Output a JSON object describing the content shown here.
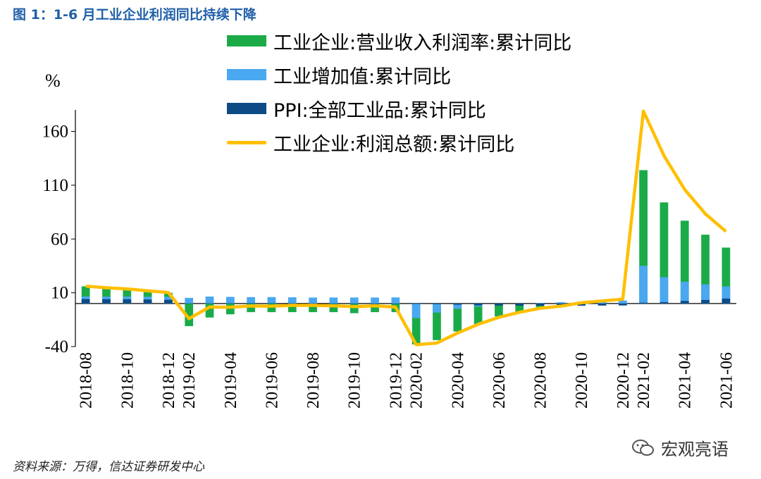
{
  "figure": {
    "title": "图 1：1-6 月工业企业利润同比持续下降",
    "source": "资料来源：万得，信达证券研发中心",
    "watermark": "宏观亮语"
  },
  "colors": {
    "revenue_margin": "#1aab48",
    "value_added": "#4aa8f0",
    "ppi": "#0d4a86",
    "profit": "#ffbf00",
    "title": "#1f5fa8"
  },
  "chart_data": {
    "type": "bar",
    "unit": "%",
    "ylim": [
      -40,
      180
    ],
    "yticks": [
      -40,
      10,
      60,
      110,
      160
    ],
    "categories": [
      "2018-08",
      "2018-09",
      "2018-10",
      "2018-11",
      "2018-12",
      "2019-02",
      "2019-03",
      "2019-04",
      "2019-05",
      "2019-06",
      "2019-07",
      "2019-08",
      "2019-09",
      "2019-10",
      "2019-11",
      "2019-12",
      "2020-02",
      "2020-03",
      "2020-04",
      "2020-05",
      "2020-06",
      "2020-07",
      "2020-08",
      "2020-09",
      "2020-10",
      "2020-11",
      "2020-12",
      "2021-02",
      "2021-03",
      "2021-04",
      "2021-05",
      "2021-06"
    ],
    "xtick_labels": [
      "2018-08",
      "2018-10",
      "2018-12",
      "2019-02",
      "2019-04",
      "2019-06",
      "2019-08",
      "2019-10",
      "2019-12",
      "2020-02",
      "2020-04",
      "2020-06",
      "2020-08",
      "2020-10",
      "2020-12",
      "2021-02",
      "2021-04",
      "2021-06"
    ],
    "series": [
      {
        "name": "工业企业:营业收入利润率:累计同比",
        "kind": "bar",
        "values": [
          16,
          15,
          13,
          12,
          10,
          -21,
          -13,
          -10,
          -8,
          -8,
          -8,
          -8,
          -8,
          -9,
          -8,
          -8,
          -38,
          -34,
          -26,
          -19,
          -12,
          -8,
          -5,
          -2,
          0,
          2,
          2,
          124,
          94,
          77,
          64,
          52
        ]
      },
      {
        "name": "工业增加值:累计同比",
        "kind": "bar",
        "values": [
          6.5,
          6.4,
          6.4,
          6.3,
          6.2,
          5.3,
          6.5,
          6.2,
          6.0,
          6.0,
          5.8,
          5.6,
          5.6,
          5.6,
          5.6,
          5.7,
          -13.5,
          -8.4,
          -4.9,
          -2.8,
          -1.3,
          -0.4,
          0.4,
          1.2,
          1.8,
          2.3,
          2.8,
          35.1,
          24.5,
          20.3,
          17.8,
          15.9
        ]
      },
      {
        "name": "PPI:全部工业品:累计同比",
        "kind": "bar",
        "values": [
          4.2,
          4.1,
          4.0,
          3.8,
          3.5,
          0.1,
          0.2,
          0.3,
          0.4,
          0.3,
          0.2,
          0.1,
          0,
          -0.2,
          -0.3,
          -0.3,
          -0.4,
          -0.6,
          -1.1,
          -1.7,
          -1.9,
          -2.0,
          -2.0,
          -2.0,
          -2.0,
          -1.9,
          -1.8,
          0.8,
          1.3,
          2.4,
          3.3,
          4.6
        ]
      },
      {
        "name": "工业企业:利润总额:累计同比",
        "kind": "line",
        "values": [
          16.2,
          14.7,
          13.6,
          11.8,
          10.3,
          -14.0,
          -3.3,
          -3.4,
          -2.3,
          -2.4,
          -1.7,
          -1.7,
          -2.1,
          -2.9,
          -2.1,
          -3.3,
          -38.3,
          -36.7,
          -27.4,
          -19.3,
          -12.8,
          -8.1,
          -4.4,
          -2.4,
          0.7,
          2.4,
          4.1,
          178.9,
          137.3,
          106.0,
          83.4,
          66.9
        ]
      }
    ]
  }
}
